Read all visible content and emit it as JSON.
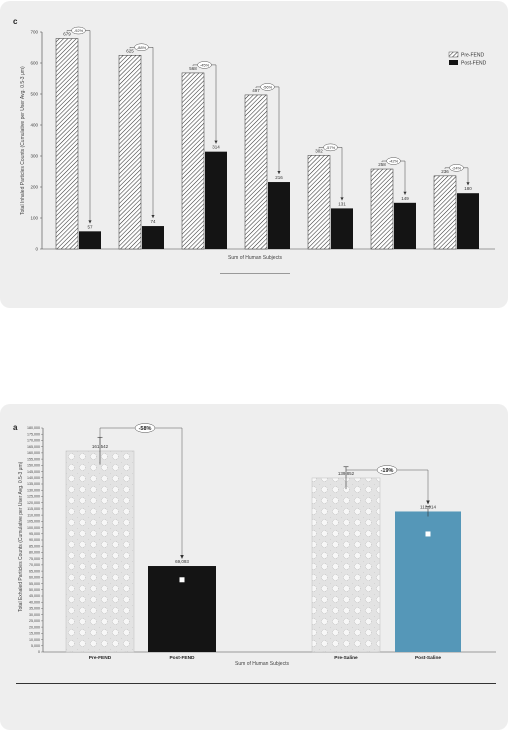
{
  "chart_data": [
    {
      "panel": "c",
      "type": "bar",
      "ylabel": "Total Inhaled Particles Counts (Cumulative per User Avg. 0.5-3 μm)",
      "xlabel": "Sum of Human Subjects",
      "ylim": [
        0,
        700
      ],
      "yticks": [
        0,
        100,
        200,
        300,
        400,
        500,
        600,
        700
      ],
      "legend_position": "top-right",
      "series": [
        {
          "name": "Pre-FEND",
          "values": [
            679,
            625,
            568,
            497,
            302,
            258,
            236
          ]
        },
        {
          "name": "Post-FEND",
          "values": [
            57,
            74,
            314,
            216,
            131,
            149,
            180
          ]
        }
      ],
      "pair_labels": {
        "pre": [
          "679",
          "625",
          "568",
          "497",
          "302",
          "258",
          "236"
        ],
        "post": [
          "57",
          "74",
          "314",
          "216",
          "131",
          "149",
          "180"
        ]
      },
      "annotations": [
        "-92%",
        "-88%",
        "-45%",
        "-56%",
        "-57%",
        "-42%",
        "-24%"
      ]
    },
    {
      "panel": "a",
      "type": "bar",
      "ylabel": "Total Exhaled Particles Counts (Cumulative per User Avg. 0.5-3 μm)",
      "xlabel": "Sum of Human Subjects",
      "ylim": [
        0,
        180000
      ],
      "categories": [
        "Pre-FEND",
        "Post-FEND",
        "Pre-Saline",
        "Post-Saline"
      ],
      "values": [
        161542,
        69093,
        139852,
        112914
      ],
      "value_labels": [
        "161,542",
        "69,093",
        "139,852",
        "112,914"
      ],
      "annotations": [
        {
          "text": "-58%"
        },
        {
          "text": "-19%"
        }
      ]
    }
  ],
  "colors": {
    "post_fend": "#141414",
    "post_saline": "#5597b8",
    "hatch_stroke": "#333333",
    "panel_bg": "#eeeeee"
  },
  "panel_letters": {
    "c": "c",
    "a": "a"
  }
}
